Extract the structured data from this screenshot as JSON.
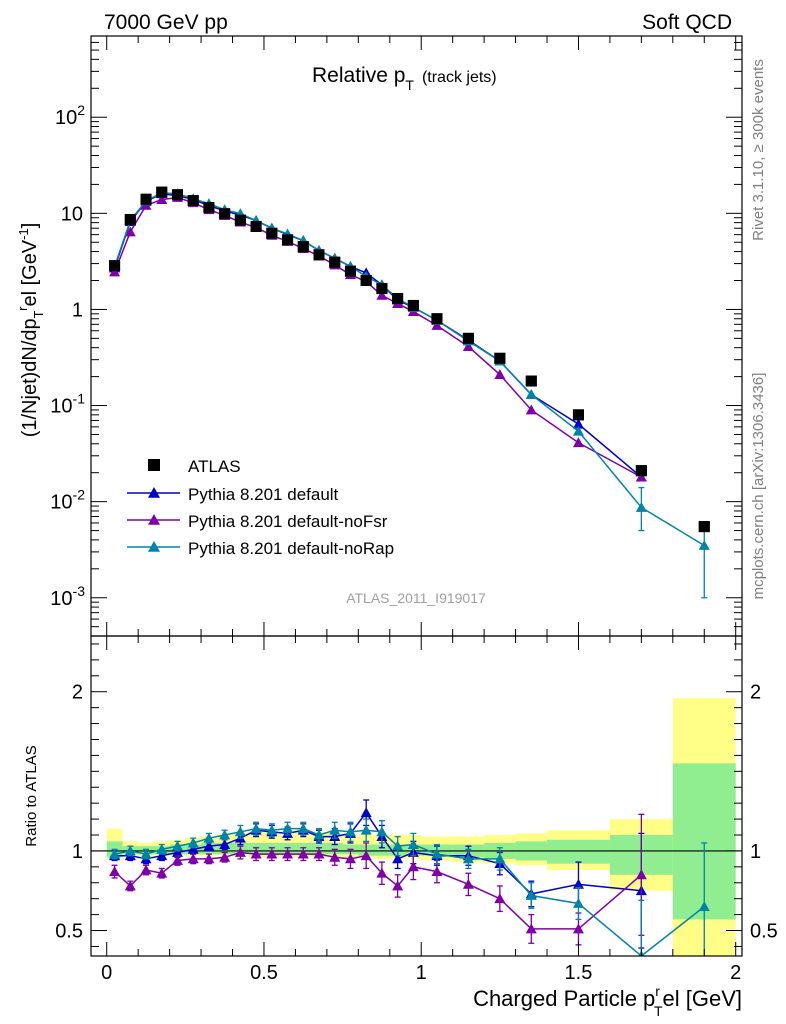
{
  "header": {
    "left": "7000 GeV pp",
    "right": "Soft QCD"
  },
  "side_labels": {
    "rivet": "Rivet 3.1.10, ≥ 300k events",
    "mcplots": "mcplots.cern.ch [arXiv:1306.3436]"
  },
  "analysis_id": "ATLAS_2011_I919017",
  "colors": {
    "atlas": "#000000",
    "pythia_default": "#0000cc",
    "pythia_nofsr": "#7f00a8",
    "pythia_norap": "#0083a8",
    "band_yellow": "#ffff88",
    "band_green": "#90ee90"
  },
  "chart_data": [
    {
      "panel": "main",
      "type": "line",
      "title_main": "Relative p",
      "title_sub": "T",
      "title_tail": "(track jets)",
      "ylabel": "(1/Njet)dN/dp",
      "ylabel_sub": "T",
      "ylabel_sup": "r",
      "ylabel_tail": "el [GeV",
      "ylabel_tail_sup": "-1",
      "ylabel_close": "]",
      "yscale": "log",
      "xlim": [
        -0.05,
        2.02
      ],
      "ylim": [
        0.0004,
        700
      ],
      "y_ticks": [
        {
          "v": 0.001,
          "base": "10",
          "exp": "-3"
        },
        {
          "v": 0.01,
          "base": "10",
          "exp": "-2"
        },
        {
          "v": 0.1,
          "base": "10",
          "exp": "-1"
        },
        {
          "v": 1,
          "base": "1",
          "exp": ""
        },
        {
          "v": 10,
          "base": "10",
          "exp": ""
        },
        {
          "v": 100,
          "base": "10",
          "exp": "2"
        }
      ],
      "legend_placement": "bottom-left",
      "series": [
        {
          "name": "ATLAS",
          "marker": "square",
          "x": [
            0.025,
            0.075,
            0.125,
            0.175,
            0.225,
            0.275,
            0.325,
            0.375,
            0.425,
            0.475,
            0.525,
            0.575,
            0.625,
            0.675,
            0.725,
            0.775,
            0.825,
            0.875,
            0.925,
            0.975,
            1.05,
            1.15,
            1.25,
            1.35,
            1.5,
            1.7,
            1.9
          ],
          "y": [
            2.85,
            8.6,
            14.0,
            16.6,
            15.6,
            13.6,
            11.5,
            9.9,
            8.5,
            7.3,
            6.2,
            5.3,
            4.5,
            3.7,
            3.1,
            2.5,
            2.0,
            1.65,
            1.3,
            1.1,
            0.8,
            0.5,
            0.31,
            0.18,
            0.08,
            0.021,
            0.0055
          ]
        },
        {
          "name": "Pythia 8.201 default",
          "marker": "triangle",
          "x": [
            0.025,
            0.075,
            0.125,
            0.175,
            0.225,
            0.275,
            0.325,
            0.375,
            0.425,
            0.475,
            0.525,
            0.575,
            0.625,
            0.675,
            0.725,
            0.775,
            0.825,
            0.875,
            0.925,
            0.975,
            1.05,
            1.15,
            1.25,
            1.35,
            1.5,
            1.7
          ],
          "y": [
            2.7,
            8.2,
            13.3,
            16.0,
            15.3,
            13.9,
            12.0,
            10.6,
            9.6,
            8.4,
            7.0,
            6.0,
            5.2,
            4.1,
            3.4,
            2.8,
            2.4,
            1.8,
            1.25,
            1.05,
            0.77,
            0.48,
            0.29,
            0.13,
            0.064,
            0.018
          ]
        },
        {
          "name": "Pythia 8.201 default-noFsr",
          "marker": "triangle",
          "x": [
            0.025,
            0.075,
            0.125,
            0.175,
            0.225,
            0.275,
            0.325,
            0.375,
            0.425,
            0.475,
            0.525,
            0.575,
            0.625,
            0.675,
            0.725,
            0.775,
            0.825,
            0.875,
            0.925,
            0.975,
            1.05,
            1.15,
            1.25,
            1.35,
            1.5,
            1.7
          ],
          "y": [
            2.45,
            6.4,
            12.1,
            13.9,
            14.6,
            12.9,
            10.9,
            9.5,
            8.1,
            7.1,
            5.9,
            5.1,
            4.3,
            3.6,
            2.9,
            2.3,
            1.95,
            1.4,
            1.15,
            0.95,
            0.68,
            0.41,
            0.21,
            0.09,
            0.041,
            0.018
          ]
        },
        {
          "name": "Pythia 8.201 default-noRap",
          "marker": "triangle",
          "x": [
            0.025,
            0.075,
            0.125,
            0.175,
            0.225,
            0.275,
            0.325,
            0.375,
            0.425,
            0.475,
            0.525,
            0.575,
            0.625,
            0.675,
            0.725,
            0.775,
            0.825,
            0.875,
            0.925,
            0.975,
            1.05,
            1.15,
            1.25,
            1.35,
            1.5,
            1.7,
            1.9
          ],
          "y": [
            2.8,
            8.4,
            13.5,
            16.3,
            16.0,
            14.2,
            12.6,
            10.9,
            9.9,
            8.4,
            7.0,
            6.1,
            5.2,
            4.1,
            3.4,
            2.8,
            2.2,
            1.8,
            1.3,
            1.05,
            0.77,
            0.47,
            0.29,
            0.13,
            0.054,
            0.0087,
            0.0035
          ],
          "yerr_from": [
            null,
            null,
            null,
            null,
            null,
            null,
            null,
            null,
            null,
            null,
            null,
            null,
            null,
            null,
            null,
            null,
            null,
            null,
            null,
            null,
            null,
            null,
            null,
            null,
            null,
            0.005,
            0.001
          ],
          "yerr_to": [
            null,
            null,
            null,
            null,
            null,
            null,
            null,
            null,
            null,
            null,
            null,
            null,
            null,
            null,
            null,
            null,
            null,
            null,
            null,
            null,
            null,
            null,
            null,
            null,
            null,
            0.014,
            0.006
          ]
        }
      ]
    },
    {
      "panel": "ratio",
      "type": "line",
      "ylabel": "Ratio to ATLAS",
      "xlabel_main": "Charged Particle p",
      "xlabel_sup": "r",
      "xlabel_sub": "T",
      "xlabel_tail": "el [GeV]",
      "xlim": [
        -0.05,
        2.02
      ],
      "ylim": [
        0.34,
        2.35
      ],
      "x_ticks": [
        {
          "v": 0,
          "label": "0"
        },
        {
          "v": 0.5,
          "label": "0.5"
        },
        {
          "v": 1,
          "label": "1"
        },
        {
          "v": 1.5,
          "label": "1.5"
        },
        {
          "v": 2,
          "label": "2"
        }
      ],
      "y_ticks": [
        {
          "v": 0.5,
          "label": "0.5"
        },
        {
          "v": 1,
          "label": "1"
        },
        {
          "v": 2,
          "label": "2"
        }
      ],
      "bands": {
        "edges": [
          0.0,
          0.05,
          0.1,
          0.15,
          0.2,
          0.25,
          0.3,
          0.35,
          0.4,
          0.45,
          0.5,
          0.55,
          0.6,
          0.65,
          0.7,
          0.75,
          0.8,
          0.85,
          0.9,
          0.95,
          1.0,
          1.1,
          1.2,
          1.3,
          1.4,
          1.6,
          1.8,
          2.0
        ],
        "yellow_lo": [
          0.94,
          0.97,
          0.97,
          0.97,
          0.97,
          0.97,
          0.97,
          0.97,
          0.97,
          0.96,
          0.96,
          0.96,
          0.96,
          0.96,
          0.96,
          0.96,
          0.96,
          0.95,
          0.95,
          0.95,
          0.94,
          0.93,
          0.92,
          0.91,
          0.88,
          0.75,
          0.34
        ],
        "yellow_hi": [
          1.14,
          1.06,
          1.05,
          1.06,
          1.07,
          1.08,
          1.09,
          1.1,
          1.11,
          1.12,
          1.12,
          1.12,
          1.12,
          1.12,
          1.11,
          1.1,
          1.1,
          1.1,
          1.1,
          1.1,
          1.09,
          1.09,
          1.1,
          1.11,
          1.13,
          1.2,
          1.96
        ],
        "green_lo": [
          0.96,
          0.98,
          0.98,
          0.98,
          0.98,
          0.98,
          0.98,
          0.98,
          0.98,
          0.98,
          0.98,
          0.98,
          0.98,
          0.98,
          0.98,
          0.98,
          0.97,
          0.97,
          0.97,
          0.97,
          0.97,
          0.96,
          0.95,
          0.94,
          0.92,
          0.85,
          0.57
        ],
        "green_hi": [
          1.06,
          1.03,
          1.03,
          1.03,
          1.04,
          1.04,
          1.05,
          1.05,
          1.05,
          1.05,
          1.05,
          1.05,
          1.05,
          1.05,
          1.05,
          1.04,
          1.04,
          1.04,
          1.04,
          1.04,
          1.04,
          1.04,
          1.05,
          1.06,
          1.07,
          1.1,
          1.55
        ]
      },
      "series": [
        {
          "name": "Pythia 8.201 default",
          "x": [
            0.025,
            0.075,
            0.125,
            0.175,
            0.225,
            0.275,
            0.325,
            0.375,
            0.425,
            0.475,
            0.525,
            0.575,
            0.625,
            0.675,
            0.725,
            0.775,
            0.825,
            0.875,
            0.925,
            0.975,
            1.05,
            1.15,
            1.25,
            1.35,
            1.5,
            1.7
          ],
          "y": [
            0.97,
            0.97,
            0.95,
            0.97,
            0.99,
            1.01,
            1.03,
            1.04,
            1.08,
            1.13,
            1.12,
            1.11,
            1.13,
            1.09,
            1.09,
            1.11,
            1.24,
            1.09,
            0.95,
            0.99,
            0.97,
            0.97,
            0.92,
            0.73,
            0.79,
            0.75
          ],
          "err": [
            0.03,
            0.03,
            0.03,
            0.03,
            0.03,
            0.03,
            0.03,
            0.03,
            0.04,
            0.04,
            0.04,
            0.04,
            0.04,
            0.04,
            0.05,
            0.06,
            0.08,
            0.07,
            0.06,
            0.07,
            0.06,
            0.06,
            0.07,
            0.08,
            0.14,
            0.36
          ]
        },
        {
          "name": "Pythia 8.201 default-noFsr",
          "x": [
            0.025,
            0.075,
            0.125,
            0.175,
            0.225,
            0.275,
            0.325,
            0.375,
            0.425,
            0.475,
            0.525,
            0.575,
            0.625,
            0.675,
            0.725,
            0.775,
            0.825,
            0.875,
            0.925,
            0.975,
            1.05,
            1.15,
            1.25,
            1.35,
            1.5,
            1.7
          ],
          "y": [
            0.87,
            0.78,
            0.88,
            0.86,
            0.94,
            0.95,
            0.95,
            0.96,
            0.99,
            0.98,
            0.98,
            0.98,
            0.98,
            0.98,
            0.96,
            0.95,
            0.97,
            0.86,
            0.78,
            0.9,
            0.87,
            0.79,
            0.7,
            0.51,
            0.51,
            0.85
          ],
          "err": [
            0.04,
            0.03,
            0.03,
            0.03,
            0.03,
            0.03,
            0.03,
            0.03,
            0.04,
            0.04,
            0.04,
            0.04,
            0.04,
            0.04,
            0.05,
            0.06,
            0.08,
            0.07,
            0.07,
            0.08,
            0.07,
            0.07,
            0.08,
            0.09,
            0.1,
            0.38
          ]
        },
        {
          "name": "Pythia 8.201 default-noRap",
          "x": [
            0.025,
            0.075,
            0.125,
            0.175,
            0.225,
            0.275,
            0.325,
            0.375,
            0.425,
            0.475,
            0.525,
            0.575,
            0.625,
            0.675,
            0.725,
            0.775,
            0.825,
            0.875,
            0.925,
            0.975,
            1.05,
            1.15,
            1.25,
            1.35,
            1.5,
            1.7,
            1.9
          ],
          "y": [
            0.98,
            1.0,
            0.98,
            1.01,
            1.03,
            1.05,
            1.08,
            1.1,
            1.12,
            1.14,
            1.13,
            1.14,
            1.14,
            1.1,
            1.13,
            1.12,
            1.13,
            1.12,
            1.03,
            1.04,
            0.98,
            0.95,
            0.95,
            0.72,
            0.67,
            0.34,
            0.65
          ],
          "err": [
            0.03,
            0.03,
            0.03,
            0.03,
            0.03,
            0.03,
            0.03,
            0.03,
            0.04,
            0.04,
            0.04,
            0.04,
            0.04,
            0.04,
            0.05,
            0.06,
            0.07,
            0.07,
            0.06,
            0.07,
            0.06,
            0.06,
            0.07,
            0.08,
            0.1,
            0.35,
            0.4
          ]
        }
      ]
    }
  ]
}
